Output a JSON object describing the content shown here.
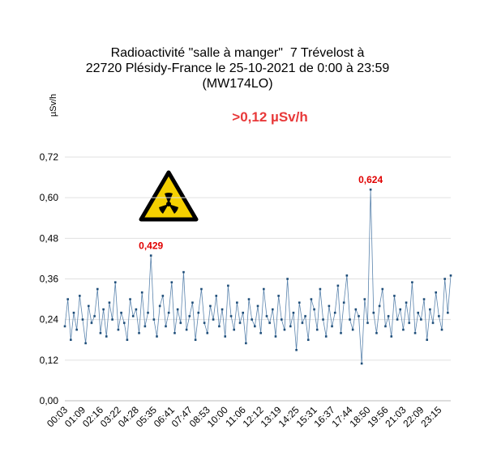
{
  "chart_data": {
    "type": "line",
    "title": [
      "Radioactivité \"salle à manger\"  7 Trévelost à",
      "22720 Plésidy-France le 25-10-2021 de 0:00 à 23:59",
      "(MW174LO)"
    ],
    "y_label": "µSv/h",
    "annotation": ">0,12 µSv/h",
    "categories": [
      "00:03",
      null,
      null,
      null,
      null,
      null,
      "01:09",
      null,
      null,
      null,
      null,
      null,
      "02:16",
      null,
      null,
      null,
      null,
      null,
      "03:22",
      null,
      null,
      null,
      null,
      null,
      "04:28",
      null,
      null,
      null,
      null,
      null,
      "05:35",
      null,
      null,
      null,
      null,
      null,
      "06:41",
      null,
      null,
      null,
      null,
      null,
      "07:47",
      null,
      null,
      null,
      null,
      null,
      "08:53",
      null,
      null,
      null,
      null,
      null,
      "10:00",
      null,
      null,
      null,
      null,
      null,
      "11:06",
      null,
      null,
      null,
      null,
      null,
      "12:12",
      null,
      null,
      null,
      null,
      null,
      "13:19",
      null,
      null,
      null,
      null,
      null,
      "14:25",
      null,
      null,
      null,
      null,
      null,
      "15:31",
      null,
      null,
      null,
      null,
      null,
      "16:37",
      null,
      null,
      null,
      null,
      null,
      "17:44",
      null,
      null,
      null,
      null,
      null,
      "18:50",
      null,
      null,
      null,
      null,
      null,
      "19:56",
      null,
      null,
      null,
      null,
      null,
      "21:03",
      null,
      null,
      null,
      null,
      null,
      "22:09",
      null,
      null,
      null,
      null,
      null,
      "23:15",
      null,
      null,
      null,
      null
    ],
    "series": [
      {
        "color": "#1f4e79",
        "values": [
          0.22,
          0.3,
          0.18,
          0.26,
          0.21,
          0.31,
          0.24,
          0.17,
          0.28,
          0.23,
          0.25,
          0.33,
          0.2,
          0.27,
          0.19,
          0.29,
          0.24,
          0.35,
          0.21,
          0.26,
          0.23,
          0.18,
          0.3,
          0.25,
          0.27,
          0.2,
          0.32,
          0.22,
          0.26,
          0.429,
          0.24,
          0.19,
          0.28,
          0.31,
          0.22,
          0.26,
          0.35,
          0.2,
          0.27,
          0.23,
          0.38,
          0.21,
          0.25,
          0.29,
          0.18,
          0.26,
          0.33,
          0.23,
          0.2,
          0.28,
          0.24,
          0.31,
          0.22,
          0.27,
          0.19,
          0.34,
          0.25,
          0.21,
          0.29,
          0.23,
          0.26,
          0.17,
          0.3,
          0.24,
          0.22,
          0.28,
          0.2,
          0.33,
          0.25,
          0.23,
          0.27,
          0.19,
          0.31,
          0.24,
          0.21,
          0.36,
          0.22,
          0.26,
          0.15,
          0.29,
          0.23,
          0.25,
          0.18,
          0.3,
          0.27,
          0.21,
          0.33,
          0.24,
          0.19,
          0.28,
          0.22,
          0.26,
          0.34,
          0.2,
          0.29,
          0.37,
          0.24,
          0.21,
          0.27,
          0.25,
          0.11,
          0.3,
          0.23,
          0.624,
          0.26,
          0.2,
          0.28,
          0.33,
          0.22,
          0.25,
          0.19,
          0.31,
          0.24,
          0.27,
          0.21,
          0.29,
          0.23,
          0.35,
          0.2,
          0.26,
          0.24,
          0.3,
          0.18,
          0.27,
          0.23,
          0.32,
          0.25,
          0.21,
          0.36,
          0.26,
          0.37
        ],
        "value_labels": [
          null,
          null,
          null,
          null,
          null,
          null,
          null,
          null,
          null,
          null,
          null,
          null,
          null,
          null,
          null,
          null,
          null,
          null,
          null,
          null,
          null,
          null,
          null,
          null,
          null,
          null,
          null,
          null,
          null,
          "0,429",
          null,
          null,
          null,
          null,
          null,
          null,
          null,
          null,
          null,
          null,
          null,
          null,
          null,
          null,
          null,
          null,
          null,
          null,
          null,
          null,
          null,
          null,
          null,
          null,
          null,
          null,
          null,
          null,
          null,
          null,
          null,
          null,
          null,
          null,
          null,
          null,
          null,
          null,
          null,
          null,
          null,
          null,
          null,
          null,
          null,
          null,
          null,
          null,
          null,
          null,
          null,
          null,
          null,
          null,
          null,
          null,
          null,
          null,
          null,
          null,
          null,
          null,
          null,
          null,
          null,
          null,
          null,
          null,
          null,
          null,
          null,
          null,
          null,
          "0,624",
          null,
          null,
          null,
          null,
          null,
          null,
          null,
          null,
          null,
          null,
          null,
          null,
          null,
          null,
          null,
          null,
          null,
          null,
          null,
          null,
          null,
          null,
          null,
          null,
          null,
          null,
          null
        ]
      }
    ],
    "ylim": [
      0,
      0.72
    ],
    "yticks": [
      {
        "value": 0,
        "label": "0,00"
      },
      {
        "value": 0.12,
        "label": "0,12"
      },
      {
        "value": 0.24,
        "label": "0,24"
      },
      {
        "value": 0.36,
        "label": "0,36"
      },
      {
        "value": 0.48,
        "label": "0,48"
      },
      {
        "value": 0.6,
        "label": "0,60"
      },
      {
        "value": 0.72,
        "label": "0,72"
      }
    ],
    "grid": true
  }
}
